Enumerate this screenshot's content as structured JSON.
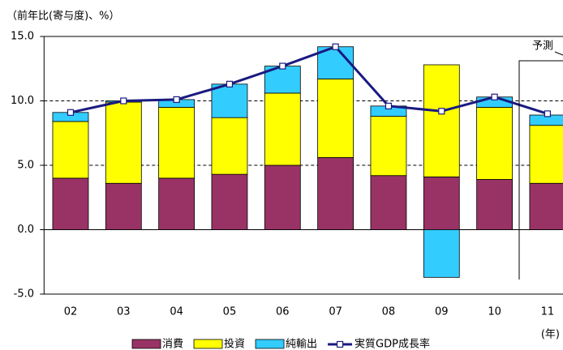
{
  "chart_data": {
    "type": "stacked_bar_line",
    "y_axis_title": "（前年比(寄与度)、%）",
    "x_unit_label": "(年)",
    "forecast_label": "予測",
    "categories": [
      "02",
      "03",
      "04",
      "05",
      "06",
      "07",
      "08",
      "09",
      "10",
      "11"
    ],
    "series": [
      {
        "name": "消費",
        "color": "#993366",
        "kind": "bar",
        "values": [
          4.0,
          3.6,
          4.0,
          4.3,
          5.0,
          5.6,
          4.2,
          4.1,
          3.9,
          3.6
        ]
      },
      {
        "name": "投資",
        "color": "#ffff00",
        "kind": "bar",
        "values": [
          4.4,
          6.3,
          5.5,
          4.4,
          5.6,
          6.1,
          4.6,
          8.7,
          5.6,
          4.5
        ]
      },
      {
        "name": "純輸出",
        "color": "#33ccff",
        "kind": "bar",
        "values": [
          0.7,
          0.1,
          0.6,
          2.6,
          2.1,
          2.5,
          0.8,
          -3.7,
          0.8,
          0.8
        ]
      },
      {
        "name": "実質GDP成長率",
        "color": "#1a1a80",
        "kind": "line",
        "values": [
          9.1,
          10.0,
          10.1,
          11.3,
          12.7,
          14.2,
          9.6,
          9.2,
          10.3,
          9.0
        ]
      }
    ],
    "ylim": [
      -5,
      15
    ],
    "yticks": [
      {
        "value": -5,
        "label": "-5.0"
      },
      {
        "value": 0,
        "label": "0.0"
      },
      {
        "value": 5,
        "label": "5.0"
      },
      {
        "value": 10,
        "label": "10.0"
      },
      {
        "value": 15,
        "label": "15.0"
      }
    ],
    "grid": true
  }
}
